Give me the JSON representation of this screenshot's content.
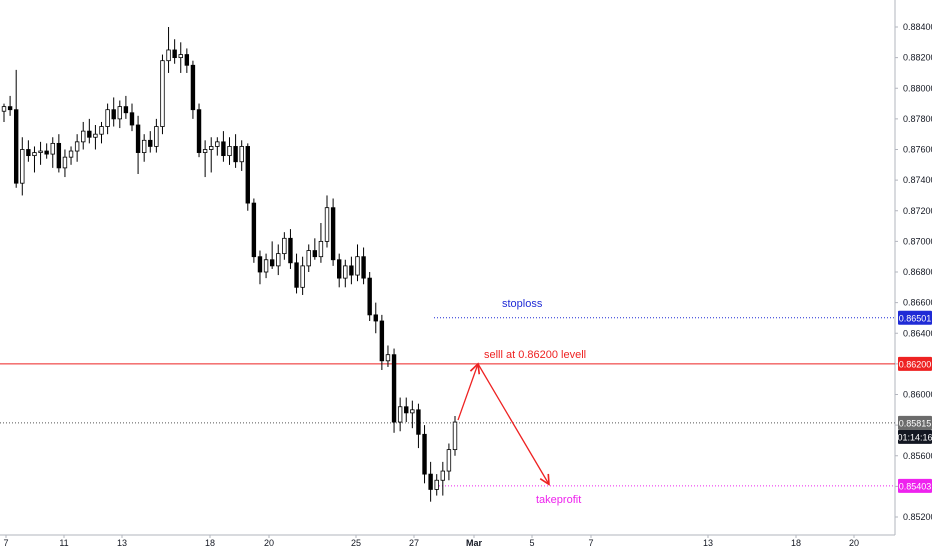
{
  "chart_data": {
    "type": "candlestick",
    "y_range": [
      0.8512,
      0.885
    ],
    "y_ticks": [
      "0.88400",
      "0.88200",
      "0.88000",
      "0.87800",
      "0.87600",
      "0.87400",
      "0.87200",
      "0.87000",
      "0.86800",
      "0.86600",
      "0.86400",
      "0.86200",
      "0.86000",
      "0.85800",
      "0.85600",
      "0.85400",
      "0.85200"
    ],
    "x_ticks": [
      "7",
      "11",
      "13",
      "18",
      "20",
      "25",
      "27",
      "Mar",
      "5",
      "7",
      "13",
      "18",
      "20"
    ],
    "grid": false,
    "candles": [
      [
        0.8785,
        0.879,
        0.8778,
        0.8788
      ],
      [
        0.8788,
        0.8795,
        0.8782,
        0.8786
      ],
      [
        0.8786,
        0.8812,
        0.8735,
        0.8738
      ],
      [
        0.8738,
        0.8768,
        0.873,
        0.876
      ],
      [
        0.876,
        0.8766,
        0.8752,
        0.8756
      ],
      [
        0.8756,
        0.8762,
        0.8745,
        0.8758
      ],
      [
        0.8758,
        0.8765,
        0.875,
        0.8759
      ],
      [
        0.8759,
        0.8764,
        0.8754,
        0.8757
      ],
      [
        0.8757,
        0.8768,
        0.8748,
        0.8764
      ],
      [
        0.8764,
        0.877,
        0.8745,
        0.8748
      ],
      [
        0.8748,
        0.876,
        0.8742,
        0.8755
      ],
      [
        0.8755,
        0.8762,
        0.875,
        0.8759
      ],
      [
        0.8759,
        0.877,
        0.8752,
        0.8765
      ],
      [
        0.8765,
        0.8778,
        0.876,
        0.8772
      ],
      [
        0.8772,
        0.878,
        0.8764,
        0.8768
      ],
      [
        0.8768,
        0.8776,
        0.876,
        0.877
      ],
      [
        0.877,
        0.8778,
        0.8764,
        0.8775
      ],
      [
        0.8775,
        0.879,
        0.877,
        0.8786
      ],
      [
        0.8786,
        0.8794,
        0.8775,
        0.878
      ],
      [
        0.878,
        0.8792,
        0.8774,
        0.8788
      ],
      [
        0.8788,
        0.8795,
        0.878,
        0.8784
      ],
      [
        0.8784,
        0.879,
        0.8772,
        0.8776
      ],
      [
        0.8776,
        0.8782,
        0.8744,
        0.8758
      ],
      [
        0.8758,
        0.877,
        0.8752,
        0.8766
      ],
      [
        0.8766,
        0.8772,
        0.8758,
        0.8762
      ],
      [
        0.8762,
        0.878,
        0.8758,
        0.8775
      ],
      [
        0.8775,
        0.8822,
        0.877,
        0.8818
      ],
      [
        0.8818,
        0.884,
        0.881,
        0.8825
      ],
      [
        0.8825,
        0.8832,
        0.8816,
        0.882
      ],
      [
        0.882,
        0.883,
        0.881,
        0.8822
      ],
      [
        0.8822,
        0.8826,
        0.881,
        0.8815
      ],
      [
        0.8815,
        0.8818,
        0.878,
        0.8786
      ],
      [
        0.8786,
        0.879,
        0.8755,
        0.8758
      ],
      [
        0.8758,
        0.8766,
        0.8742,
        0.876
      ],
      [
        0.876,
        0.8768,
        0.8745,
        0.8762
      ],
      [
        0.8762,
        0.8768,
        0.8756,
        0.8765
      ],
      [
        0.8765,
        0.8772,
        0.8752,
        0.8756
      ],
      [
        0.8756,
        0.8768,
        0.875,
        0.8762
      ],
      [
        0.8762,
        0.877,
        0.8748,
        0.8752
      ],
      [
        0.8752,
        0.8766,
        0.8746,
        0.8762
      ],
      [
        0.8762,
        0.8764,
        0.872,
        0.8725
      ],
      [
        0.8725,
        0.8728,
        0.8686,
        0.869
      ],
      [
        0.869,
        0.8694,
        0.8672,
        0.868
      ],
      [
        0.868,
        0.8692,
        0.8676,
        0.8688
      ],
      [
        0.8688,
        0.87,
        0.8682,
        0.8684
      ],
      [
        0.8684,
        0.8698,
        0.8678,
        0.8692
      ],
      [
        0.8692,
        0.8706,
        0.8688,
        0.8702
      ],
      [
        0.8702,
        0.8708,
        0.8682,
        0.8686
      ],
      [
        0.8686,
        0.8692,
        0.8666,
        0.867
      ],
      [
        0.867,
        0.869,
        0.8665,
        0.8684
      ],
      [
        0.8684,
        0.8698,
        0.868,
        0.8694
      ],
      [
        0.8694,
        0.8702,
        0.8688,
        0.869
      ],
      [
        0.869,
        0.8712,
        0.8686,
        0.87
      ],
      [
        0.87,
        0.873,
        0.8696,
        0.8722
      ],
      [
        0.8722,
        0.8728,
        0.8684,
        0.8688
      ],
      [
        0.8688,
        0.8692,
        0.867,
        0.8676
      ],
      [
        0.8676,
        0.8688,
        0.867,
        0.8684
      ],
      [
        0.8684,
        0.869,
        0.8672,
        0.8678
      ],
      [
        0.8678,
        0.8698,
        0.8674,
        0.869
      ],
      [
        0.869,
        0.8696,
        0.8672,
        0.8676
      ],
      [
        0.8676,
        0.868,
        0.8648,
        0.8652
      ],
      [
        0.8652,
        0.866,
        0.864,
        0.8648
      ],
      [
        0.8648,
        0.8652,
        0.8616,
        0.8622
      ],
      [
        0.8622,
        0.8632,
        0.8618,
        0.8626
      ],
      [
        0.8626,
        0.863,
        0.8575,
        0.8582
      ],
      [
        0.8582,
        0.8598,
        0.8576,
        0.8592
      ],
      [
        0.8592,
        0.8598,
        0.8582,
        0.8588
      ],
      [
        0.8588,
        0.8596,
        0.8578,
        0.859
      ],
      [
        0.859,
        0.8594,
        0.8565,
        0.8574
      ],
      [
        0.8574,
        0.858,
        0.8542,
        0.8548
      ],
      [
        0.8548,
        0.8556,
        0.853,
        0.8538
      ],
      [
        0.8538,
        0.8548,
        0.8534,
        0.8544
      ],
      [
        0.8544,
        0.8556,
        0.8534,
        0.855
      ],
      [
        0.855,
        0.8568,
        0.8544,
        0.8564
      ],
      [
        0.8564,
        0.8586,
        0.856,
        0.8582
      ]
    ],
    "current_price": 0.85815,
    "horizontal_lines": [
      {
        "name": "stoploss",
        "value": 0.86501,
        "color": "#1f2bd6",
        "style": "dotted"
      },
      {
        "name": "entry",
        "value": 0.862,
        "color": "#ee2222",
        "style": "solid"
      },
      {
        "name": "takeprofit",
        "value": 0.85403,
        "color": "#ee22ee",
        "style": "dotted"
      }
    ],
    "projection_path": [
      [
        0.8582,
        0.862,
        0.854
      ]
    ]
  },
  "price_scale": {
    "stoploss_badge": "0.86501",
    "entry_badge": "0.86200",
    "current_badge": "0.85815",
    "countdown_badge": "01:14:16",
    "takeprofit_badge": "0.85403"
  },
  "annotations": {
    "stoploss_text": "stoploss",
    "entry_text": "selll at 0.86200 levell",
    "takeprofit_text": "takeprofit"
  },
  "colors": {
    "candle": "#000000",
    "stoploss": "#1f2bd6",
    "entry": "#ee2222",
    "takeprofit": "#ee22ee",
    "current": "#555555",
    "current_badge": "#6b6b6b",
    "countdown_badge": "#131722"
  }
}
